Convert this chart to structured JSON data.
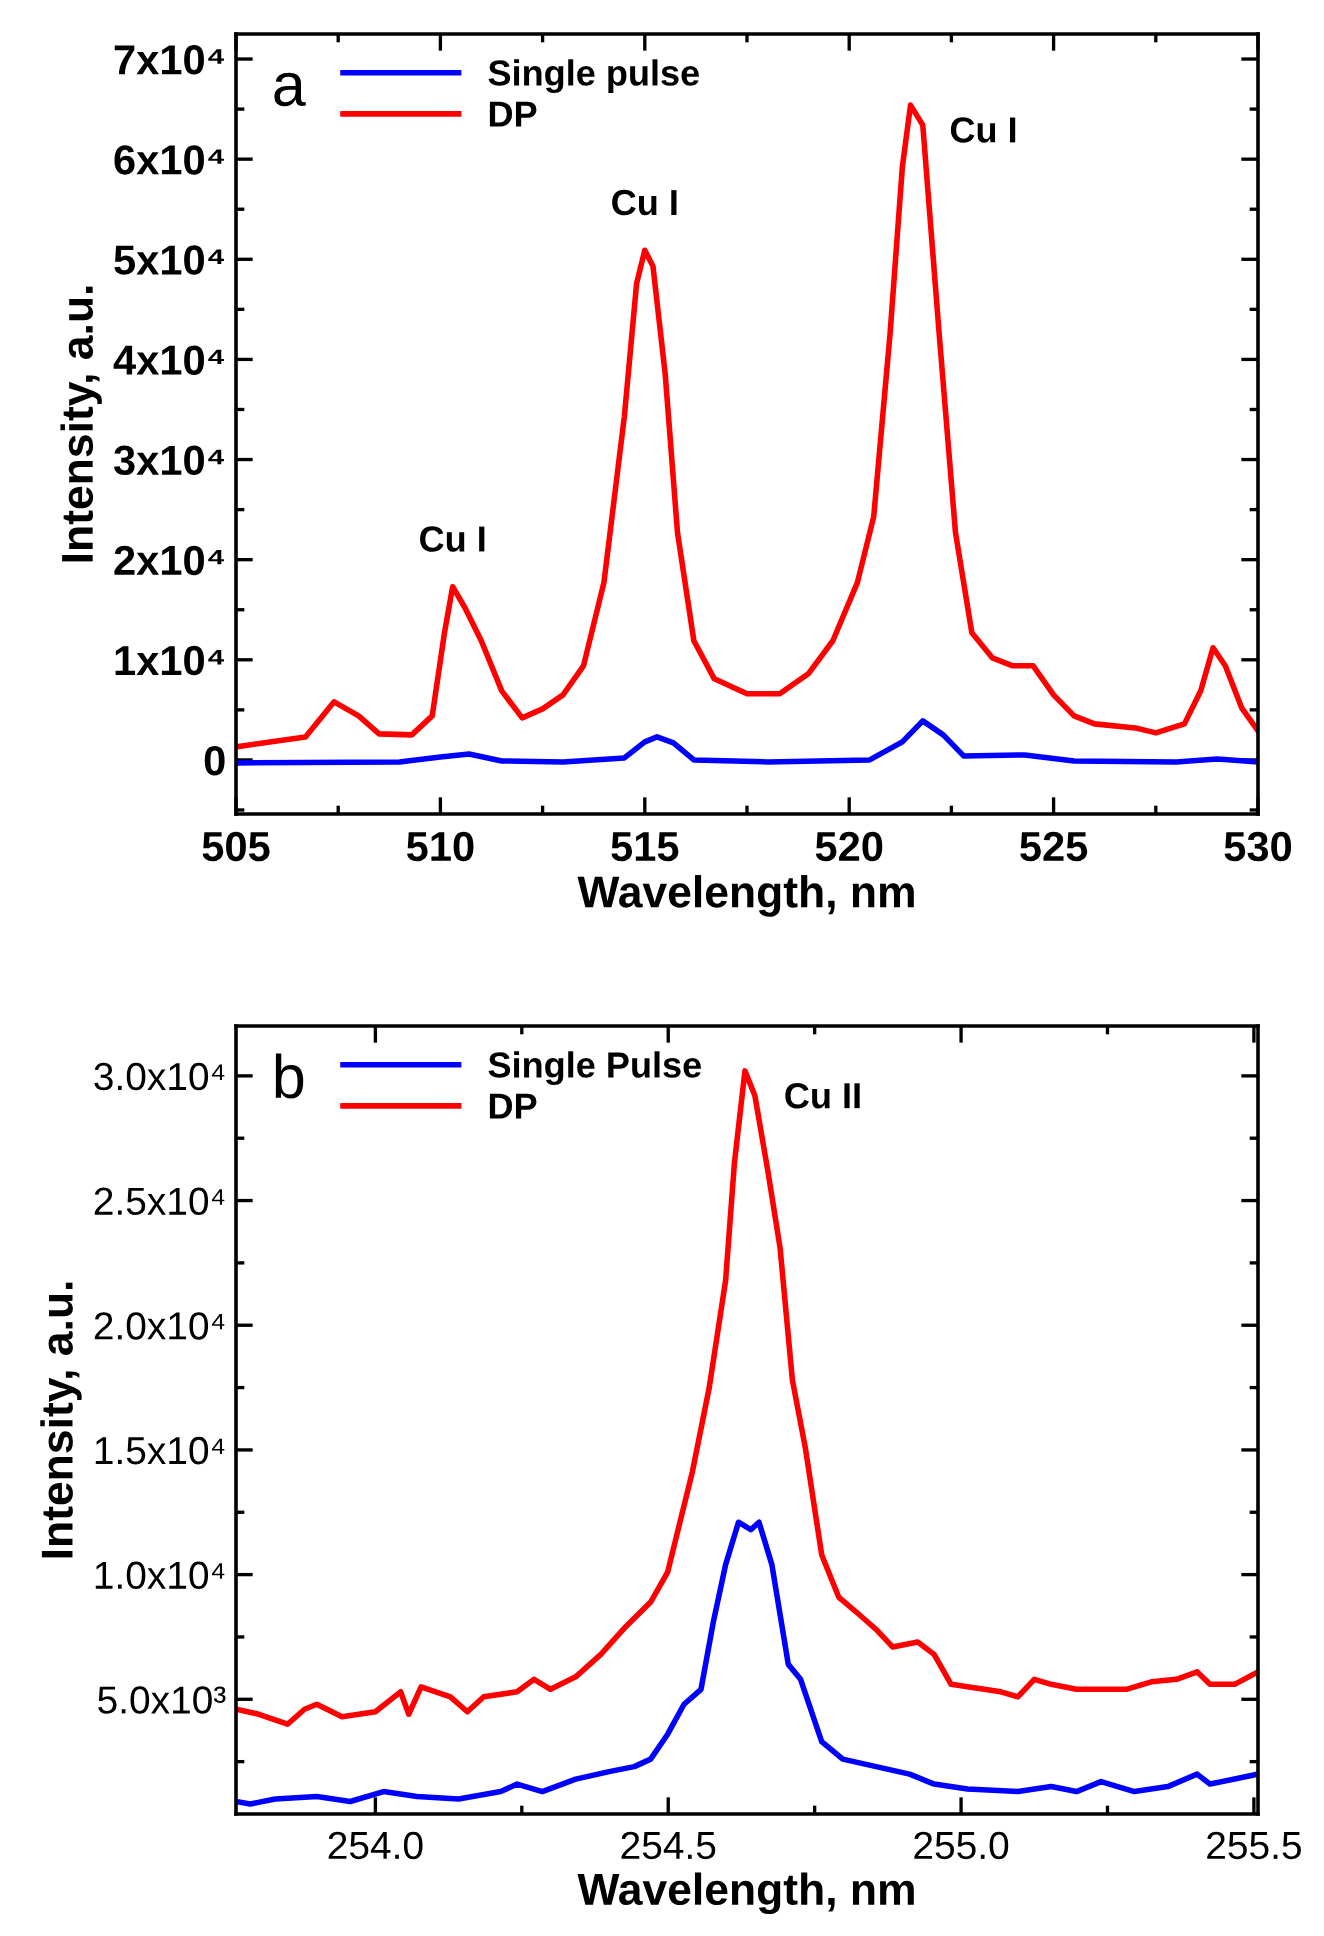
{
  "chart_data": [
    {
      "type": "line",
      "xlabel": "Wavelength, nm",
      "ylabel": "Intensity, a.u.",
      "xlim": [
        505,
        530
      ],
      "ylim": [
        -5400,
        72500
      ],
      "xticks": [
        505,
        510,
        515,
        520,
        525,
        530
      ],
      "yticks": [
        {
          "value": 0,
          "label": "0"
        },
        {
          "value": 10000,
          "label": "1x10⁴"
        },
        {
          "value": 20000,
          "label": "2x10⁴"
        },
        {
          "value": 30000,
          "label": "3x10⁴"
        },
        {
          "value": 40000,
          "label": "4x10⁴"
        },
        {
          "value": 50000,
          "label": "5x10⁴"
        },
        {
          "value": 60000,
          "label": "6x10⁴"
        },
        {
          "value": 70000,
          "label": "7x10⁴"
        }
      ],
      "legend": "top left",
      "grid": false,
      "annotations": [
        "a",
        {
          "text": "Cu I",
          "x": 510.3,
          "y": 17300
        },
        {
          "text": "Cu I",
          "x": 515,
          "y": 50900
        },
        {
          "text": "Cu I",
          "x": 521.5,
          "y": 65400
        }
      ],
      "series": [
        {
          "name": "Single pulse",
          "color": "#0000ff",
          "x": [
            505,
            509,
            510,
            510.7,
            511.5,
            513,
            514.5,
            515,
            515.3,
            515.7,
            516.2,
            518,
            520.5,
            521.3,
            521.8,
            522.3,
            522.8,
            524.3,
            525.5,
            528,
            529,
            530
          ],
          "values": [
            -300,
            -200,
            300,
            600,
            -100,
            -200,
            200,
            1800,
            2300,
            1700,
            0,
            -200,
            0,
            1800,
            3900,
            2500,
            400,
            500,
            -100,
            -200,
            100,
            -200
          ]
        },
        {
          "name": "DP",
          "color": "#ff0000",
          "x": [
            505,
            506,
            506.7,
            507.4,
            508,
            508.5,
            509.3,
            509.8,
            510.1,
            510.3,
            510.6,
            511,
            511.5,
            512,
            512.5,
            513,
            513.5,
            514,
            514.5,
            514.8,
            515,
            515.2,
            515.5,
            515.8,
            516.2,
            516.7,
            517.5,
            518.3,
            519,
            519.6,
            520.2,
            520.6,
            521,
            521.3,
            521.5,
            521.8,
            522.2,
            522.6,
            523,
            523.5,
            524,
            524.5,
            525,
            525.5,
            526,
            527,
            527.5,
            528.2,
            528.6,
            528.9,
            529.2,
            529.6,
            530
          ],
          "values": [
            1300,
            1900,
            2300,
            5800,
            4400,
            2600,
            2500,
            4400,
            12700,
            17300,
            15200,
            11900,
            6900,
            4200,
            5100,
            6500,
            9400,
            17700,
            34300,
            47600,
            50900,
            49300,
            38500,
            22700,
            11900,
            8100,
            6600,
            6600,
            8600,
            11900,
            17700,
            24300,
            42600,
            59200,
            65400,
            63400,
            42600,
            22700,
            12700,
            10200,
            9400,
            9400,
            6500,
            4400,
            3600,
            3200,
            2700,
            3600,
            6900,
            11200,
            9400,
            5200,
            2900
          ]
        }
      ]
    },
    {
      "type": "line",
      "xlabel": "Wavelength, nm",
      "ylabel": "Intensity, a.u.",
      "xlim": [
        253.762,
        255.507
      ],
      "ylim": [
        400,
        32000
      ],
      "xticks": [
        {
          "value": 254.0,
          "label": "254.0"
        },
        {
          "value": 254.5,
          "label": "254.5"
        },
        {
          "value": 255.0,
          "label": "255.0"
        },
        {
          "value": 255.5,
          "label": "255.5"
        }
      ],
      "yticks": [
        {
          "value": 5000,
          "label": "5.0x10³"
        },
        {
          "value": 10000,
          "label": "1.0x10⁴"
        },
        {
          "value": 15000,
          "label": "1.5x10⁴"
        },
        {
          "value": 20000,
          "label": "2.0x10⁴"
        },
        {
          "value": 25000,
          "label": "2.5x10⁴"
        },
        {
          "value": 30000,
          "label": "3.0x10⁴"
        }
      ],
      "legend": "top left",
      "grid": false,
      "annotations": [
        "b",
        {
          "text": "Cu II",
          "x": 254.631,
          "y": 30200
        }
      ],
      "series": [
        {
          "name": "Single Pulse",
          "color": "#0000ff",
          "x": [
            253.762,
            253.786,
            253.829,
            253.9,
            253.957,
            254.014,
            254.071,
            254.142,
            254.214,
            254.242,
            254.285,
            254.342,
            254.399,
            254.442,
            254.47,
            254.499,
            254.527,
            254.556,
            254.577,
            254.598,
            254.62,
            254.641,
            254.655,
            254.677,
            254.705,
            254.726,
            254.762,
            254.798,
            254.855,
            254.912,
            254.954,
            255.011,
            255.097,
            255.154,
            255.197,
            255.239,
            255.296,
            255.353,
            255.403,
            255.425,
            255.467,
            255.507
          ],
          "values": [
            900,
            800,
            1000,
            1100,
            900,
            1300,
            1100,
            1000,
            1300,
            1600,
            1300,
            1800,
            2100,
            2300,
            2600,
            3600,
            4800,
            5400,
            8100,
            10400,
            12100,
            11800,
            12100,
            10400,
            6400,
            5800,
            3300,
            2600,
            2300,
            2000,
            1600,
            1400,
            1300,
            1500,
            1300,
            1700,
            1300,
            1500,
            2000,
            1600,
            1800,
            2000
          ]
        },
        {
          "name": "DP",
          "color": "#ff0000",
          "x": [
            253.762,
            253.801,
            253.85,
            253.879,
            253.9,
            253.943,
            254.0,
            254.043,
            254.057,
            254.078,
            254.128,
            254.157,
            254.185,
            254.242,
            254.271,
            254.299,
            254.342,
            254.385,
            254.427,
            254.47,
            254.499,
            254.541,
            254.57,
            254.598,
            254.613,
            254.631,
            254.648,
            254.67,
            254.691,
            254.712,
            254.734,
            254.762,
            254.791,
            254.826,
            254.855,
            254.883,
            254.926,
            254.954,
            254.983,
            255.011,
            255.068,
            255.097,
            255.125,
            255.154,
            255.197,
            255.239,
            255.282,
            255.325,
            255.368,
            255.403,
            255.425,
            255.467,
            255.507
          ],
          "values": [
            4600,
            4400,
            4000,
            4600,
            4800,
            4300,
            4500,
            5300,
            4400,
            5500,
            5100,
            4500,
            5100,
            5300,
            5800,
            5400,
            5900,
            6800,
            7900,
            8900,
            10100,
            14100,
            17500,
            21800,
            26500,
            30200,
            29200,
            26200,
            23100,
            17800,
            15100,
            10800,
            9100,
            8400,
            7800,
            7100,
            7300,
            6800,
            5600,
            5500,
            5300,
            5100,
            5800,
            5600,
            5400,
            5400,
            5400,
            5700,
            5800,
            6100,
            5600,
            5600,
            6100
          ]
        }
      ]
    }
  ]
}
